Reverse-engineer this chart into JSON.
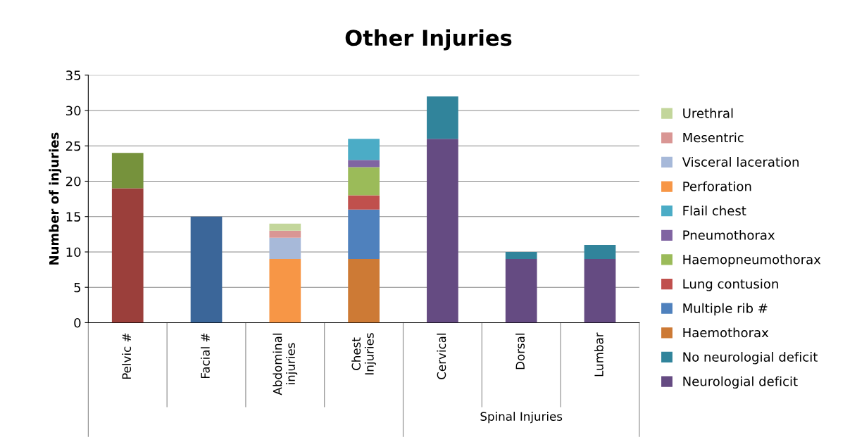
{
  "chart_data": {
    "type": "bar",
    "title": "Other Injuries",
    "ylabel": "Number of injuries",
    "categories": [
      "Pelvic #",
      "Facial #",
      "Abdominal\ninjuries",
      "Chest\nInjuries",
      "Cervical",
      "Dorsal",
      "Lumbar"
    ],
    "stacked": true,
    "ylim": [
      0,
      35
    ],
    "yticks": [
      0,
      5,
      10,
      15,
      20,
      25,
      30,
      35
    ],
    "grid": "y",
    "legend": "right",
    "annotations": [
      "Spinal Injuries"
    ],
    "series": [
      {
        "color": "#9b3f3b",
        "values": [
          19,
          null,
          null,
          null,
          null,
          null,
          null
        ]
      },
      {
        "color": "#76923c",
        "values": [
          5,
          null,
          null,
          null,
          null,
          null,
          null
        ]
      },
      {
        "color": "#3b6699",
        "values": [
          null,
          15,
          null,
          null,
          null,
          null,
          null
        ]
      },
      {
        "name": "Neurologial deficit",
        "color": "#654b82",
        "values": [
          null,
          null,
          null,
          null,
          26,
          9,
          9
        ]
      },
      {
        "name": "No neurologial deficit",
        "color": "#31849b",
        "values": [
          null,
          null,
          null,
          null,
          6,
          1,
          2
        ]
      },
      {
        "name": "Haemothorax",
        "color": "#cd7a35",
        "values": [
          null,
          null,
          null,
          9,
          null,
          null,
          null
        ]
      },
      {
        "name": "Multiple rib #",
        "color": "#4f81bd",
        "values": [
          null,
          null,
          null,
          7,
          null,
          null,
          null
        ]
      },
      {
        "name": "Lung contusion",
        "color": "#c0504d",
        "values": [
          null,
          null,
          null,
          2,
          null,
          null,
          null
        ]
      },
      {
        "name": "Haemopneumothorax",
        "color": "#9bbb59",
        "values": [
          null,
          null,
          null,
          4,
          null,
          null,
          null
        ]
      },
      {
        "name": "Pneumothorax",
        "color": "#8064a2",
        "values": [
          null,
          null,
          null,
          1,
          null,
          null,
          null
        ]
      },
      {
        "name": "Flail chest",
        "color": "#4bacc6",
        "values": [
          null,
          null,
          null,
          3,
          null,
          null,
          null
        ]
      },
      {
        "name": "Perforation",
        "color": "#f79646",
        "values": [
          null,
          null,
          9,
          null,
          null,
          null,
          null
        ]
      },
      {
        "name": "Visceral laceration",
        "color": "#a7b9d9",
        "values": [
          null,
          null,
          3,
          null,
          null,
          null,
          null
        ]
      },
      {
        "name": "Mesentric",
        "color": "#d99694",
        "values": [
          null,
          null,
          1,
          null,
          null,
          null,
          null
        ]
      },
      {
        "name": "Urethral",
        "color": "#c3d69b",
        "values": [
          null,
          null,
          1,
          null,
          null,
          null,
          null
        ]
      }
    ]
  }
}
